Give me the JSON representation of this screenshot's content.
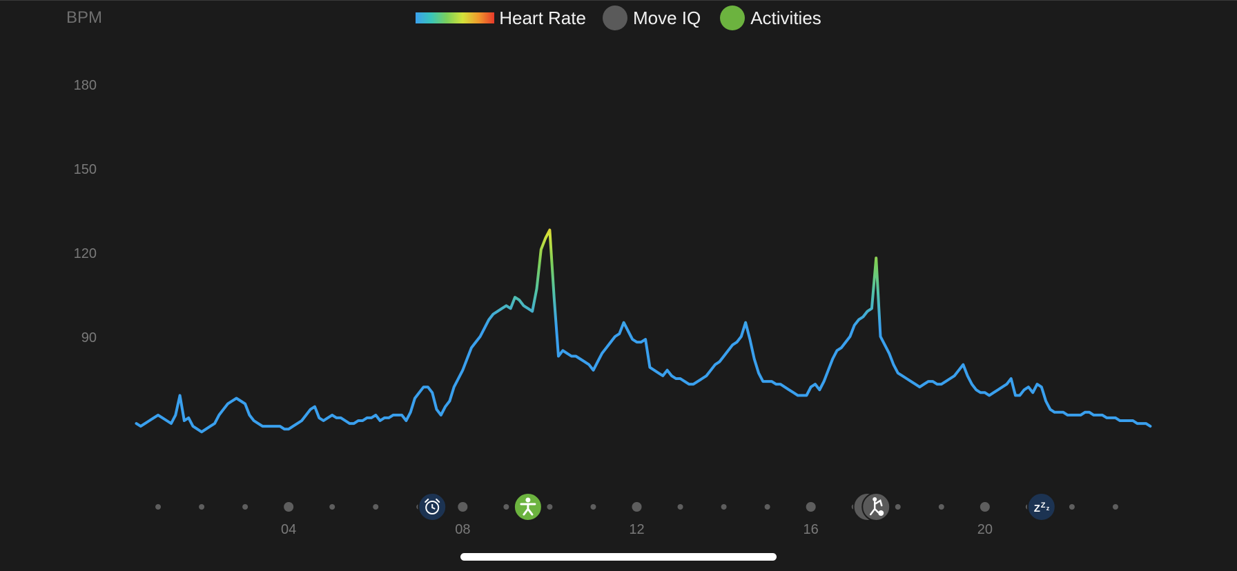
{
  "header": {
    "y_unit": "BPM"
  },
  "legend": [
    {
      "label": "Heart Rate",
      "kind": "gradient"
    },
    {
      "label": "Move IQ",
      "kind": "dot",
      "color": "#5a5a5a"
    },
    {
      "label": "Activities",
      "kind": "dot",
      "color": "#6cb33f"
    }
  ],
  "chart_data": {
    "type": "line",
    "title": "",
    "xlabel": "",
    "ylabel": "BPM",
    "x_ticks": [
      4,
      8,
      12,
      16,
      20
    ],
    "x_tick_labels": [
      "04",
      "08",
      "12",
      "16",
      "20"
    ],
    "y_ticks": [
      90,
      120,
      150,
      180
    ],
    "y_tick_labels": [
      "90",
      "120",
      "150",
      "180"
    ],
    "xlim": [
      0,
      24
    ],
    "ylim": [
      55,
      185
    ],
    "grid": false,
    "series": [
      {
        "name": "Heart Rate",
        "x": [
          0.5,
          0.6,
          0.7,
          0.8,
          0.9,
          1,
          1.1,
          1.2,
          1.3,
          1.4,
          1.5,
          1.6,
          1.7,
          1.8,
          1.9,
          2,
          2.1,
          2.2,
          2.3,
          2.4,
          2.5,
          2.6,
          2.7,
          2.8,
          2.9,
          3,
          3.1,
          3.2,
          3.3,
          3.4,
          3.5,
          3.6,
          3.7,
          3.8,
          3.9,
          4,
          4.1,
          4.2,
          4.3,
          4.4,
          4.5,
          4.6,
          4.7,
          4.8,
          4.9,
          5,
          5.1,
          5.2,
          5.3,
          5.4,
          5.5,
          5.6,
          5.7,
          5.8,
          5.9,
          6,
          6.1,
          6.2,
          6.3,
          6.4,
          6.5,
          6.6,
          6.7,
          6.8,
          6.9,
          7,
          7.1,
          7.2,
          7.3,
          7.4,
          7.5,
          7.6,
          7.7,
          7.8,
          7.9,
          8,
          8.1,
          8.2,
          8.3,
          8.4,
          8.5,
          8.6,
          8.7,
          8.8,
          8.9,
          9,
          9.1,
          9.2,
          9.3,
          9.4,
          9.5,
          9.6,
          9.7,
          9.8,
          9.9,
          10,
          10.1,
          10.2,
          10.3,
          10.4,
          10.5,
          10.6,
          10.7,
          10.8,
          10.9,
          11,
          11.1,
          11.2,
          11.3,
          11.4,
          11.5,
          11.6,
          11.7,
          11.8,
          11.9,
          12,
          12.1,
          12.2,
          12.3,
          12.4,
          12.5,
          12.6,
          12.7,
          12.8,
          12.9,
          13,
          13.1,
          13.2,
          13.3,
          13.4,
          13.5,
          13.6,
          13.7,
          13.8,
          13.9,
          14,
          14.1,
          14.2,
          14.3,
          14.4,
          14.5,
          14.6,
          14.7,
          14.8,
          14.9,
          15,
          15.1,
          15.2,
          15.3,
          15.4,
          15.5,
          15.6,
          15.7,
          15.8,
          15.9,
          16,
          16.1,
          16.2,
          16.3,
          16.4,
          16.5,
          16.6,
          16.7,
          16.8,
          16.9,
          17,
          17.1,
          17.2,
          17.3,
          17.4,
          17.5,
          17.6,
          17.7,
          17.8,
          17.9,
          18,
          18.1,
          18.2,
          18.3,
          18.4,
          18.5,
          18.6,
          18.7,
          18.8,
          18.9,
          19,
          19.1,
          19.2,
          19.3,
          19.4,
          19.5,
          19.6,
          19.7,
          19.8,
          19.9,
          20,
          20.1,
          20.2,
          20.3,
          20.4,
          20.5,
          20.6,
          20.7,
          20.8,
          20.9,
          21,
          21.1,
          21.2,
          21.3,
          21.4,
          21.5,
          21.6,
          21.7,
          21.8,
          21.9,
          22,
          22.1,
          22.2,
          22.3,
          22.4,
          22.5,
          22.6,
          22.7,
          22.8,
          22.9,
          23,
          23.1,
          23.2,
          23.3,
          23.4,
          23.5,
          23.6,
          23.7,
          23.8
        ],
        "y": [
          59,
          58,
          59,
          60,
          61,
          62,
          61,
          60,
          59,
          62,
          69,
          60,
          61,
          58,
          57,
          56,
          57,
          58,
          59,
          62,
          64,
          66,
          67,
          68,
          67,
          66,
          62,
          60,
          59,
          58,
          58,
          58,
          58,
          58,
          57,
          57,
          58,
          59,
          60,
          62,
          64,
          65,
          61,
          60,
          61,
          62,
          61,
          61,
          60,
          59,
          59,
          60,
          60,
          61,
          61,
          62,
          60,
          61,
          61,
          62,
          62,
          62,
          60,
          63,
          68,
          70,
          72,
          72,
          70,
          64,
          62,
          65,
          67,
          72,
          75,
          78,
          82,
          86,
          88,
          90,
          93,
          96,
          98,
          99,
          100,
          101,
          100,
          104,
          103,
          101,
          100,
          99,
          107,
          121,
          125,
          128,
          104,
          83,
          85,
          84,
          83,
          83,
          82,
          81,
          80,
          78,
          81,
          84,
          86,
          88,
          90,
          91,
          95,
          92,
          89,
          88,
          88,
          89,
          79,
          78,
          77,
          76,
          78,
          76,
          75,
          75,
          74,
          73,
          73,
          74,
          75,
          76,
          78,
          80,
          81,
          83,
          85,
          87,
          88,
          90,
          95,
          89,
          82,
          77,
          74,
          74,
          74,
          73,
          73,
          72,
          71,
          70,
          69,
          69,
          69,
          72,
          73,
          71,
          74,
          78,
          82,
          85,
          86,
          88,
          90,
          94,
          96,
          97,
          99,
          100,
          118,
          90,
          87,
          84,
          80,
          77,
          76,
          75,
          74,
          73,
          72,
          73,
          74,
          74,
          73,
          73,
          74,
          75,
          76,
          78,
          80,
          76,
          73,
          71,
          70,
          70,
          69,
          70,
          71,
          72,
          73,
          75,
          69,
          69,
          71,
          72,
          70,
          73,
          72,
          67,
          64,
          63,
          63,
          63,
          62,
          62,
          62,
          62,
          63,
          63,
          62,
          62,
          62,
          61,
          61,
          61,
          60,
          60,
          60,
          60,
          59,
          59,
          59,
          58
        ]
      }
    ],
    "heart_rate_gradient": [
      "#3aa0ee",
      "#39c5b9",
      "#7ccf5a",
      "#d3e23a",
      "#f09a2c",
      "#e83a2a"
    ],
    "timeline_events": [
      {
        "hour": 7.3,
        "type": "alarm",
        "color": "#1c3352"
      },
      {
        "hour": 9.5,
        "type": "activity",
        "color": "#6cb33f"
      },
      {
        "hour": 17.3,
        "type": "move-iq",
        "color": "#5a5a5a"
      },
      {
        "hour": 17.5,
        "type": "elliptical",
        "color": "#5a5a5a"
      },
      {
        "hour": 21.3,
        "type": "sleep",
        "color": "#1c3352"
      }
    ]
  }
}
